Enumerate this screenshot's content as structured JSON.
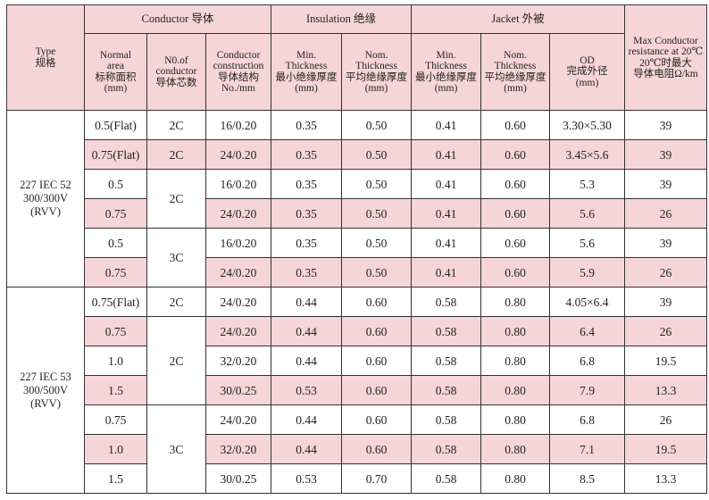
{
  "headers": {
    "type": [
      "Type",
      "规格"
    ],
    "group_conductor": "Conductor 导体",
    "group_insulation": "Insulation 绝缘",
    "group_jacket": "Jacket 外被",
    "area": [
      "Normal",
      "area",
      "标称面积",
      "(mm)"
    ],
    "cores": [
      "N0.of",
      "conductor",
      "导体芯数"
    ],
    "construction": [
      "Conductor",
      "construction",
      "导体结构",
      "No./mm"
    ],
    "ins_min": [
      "Min.",
      "Thickness",
      "最小绝缘厚度",
      "(mm)"
    ],
    "ins_nom": [
      "Nom.",
      "Thickness",
      "平均绝缘厚度",
      "(mm)"
    ],
    "jac_min": [
      "Min.",
      "Thickness",
      "最小绝缘厚度",
      "(mm)"
    ],
    "jac_nom": [
      "Nom.",
      "Thickness",
      "平均绝缘厚度",
      "(mm)"
    ],
    "od": [
      "OD",
      "完成外径",
      "(mm)"
    ],
    "resistance": [
      "Max Conductor",
      "resistance at 20℃",
      "20℃时最大",
      "导体电阻Ω/km"
    ]
  },
  "groups": [
    {
      "type": [
        "227 IEC 52",
        "300/300V",
        "(RVV)"
      ],
      "core_blocks": [
        {
          "label": "2C",
          "span": 1
        },
        {
          "label": "2C",
          "span": 1
        },
        {
          "label": "2C",
          "span": 2
        },
        {
          "label": "3C",
          "span": 2
        }
      ],
      "rows": [
        {
          "area": "0.5(Flat)",
          "construction": "16/0.20",
          "ins_min": "0.35",
          "ins_nom": "0.50",
          "jac_min": "0.41",
          "jac_nom": "0.60",
          "od": "3.30×5.30",
          "res": "39",
          "pink": false
        },
        {
          "area": "0.75(Flat)",
          "construction": "24/0.20",
          "ins_min": "0.35",
          "ins_nom": "0.50",
          "jac_min": "0.41",
          "jac_nom": "0.60",
          "od": "3.45×5.6",
          "res": "39",
          "pink": true
        },
        {
          "area": "0.5",
          "construction": "16/0.20",
          "ins_min": "0.35",
          "ins_nom": "0.50",
          "jac_min": "0.41",
          "jac_nom": "0.60",
          "od": "5.3",
          "res": "39",
          "pink": false
        },
        {
          "area": "0.75",
          "construction": "24/0.20",
          "ins_min": "0.35",
          "ins_nom": "0.50",
          "jac_min": "0.41",
          "jac_nom": "0.60",
          "od": "5.6",
          "res": "26",
          "pink": true
        },
        {
          "area": "0.5",
          "construction": "16/0.20",
          "ins_min": "0.35",
          "ins_nom": "0.50",
          "jac_min": "0.41",
          "jac_nom": "0.60",
          "od": "5.6",
          "res": "39",
          "pink": false
        },
        {
          "area": "0.75",
          "construction": "24/0.20",
          "ins_min": "0.35",
          "ins_nom": "0.50",
          "jac_min": "0.41",
          "jac_nom": "0.60",
          "od": "5.9",
          "res": "26",
          "pink": true
        }
      ]
    },
    {
      "type": [
        "227 IEC 53",
        "300/500V",
        "(RVV)"
      ],
      "core_blocks": [
        {
          "label": "2C",
          "span": 1
        },
        {
          "label": "2C",
          "span": 3
        },
        {
          "label": "3C",
          "span": 3
        }
      ],
      "rows": [
        {
          "area": "0.75(Flat)",
          "construction": "24/0.20",
          "ins_min": "0.44",
          "ins_nom": "0.60",
          "jac_min": "0.58",
          "jac_nom": "0.80",
          "od": "4.05×6.4",
          "res": "39",
          "pink": false
        },
        {
          "area": "0.75",
          "construction": "24/0.20",
          "ins_min": "0.44",
          "ins_nom": "0.60",
          "jac_min": "0.58",
          "jac_nom": "0.80",
          "od": "6.4",
          "res": "26",
          "pink": true
        },
        {
          "area": "1.0",
          "construction": "32/0.20",
          "ins_min": "0.44",
          "ins_nom": "0.60",
          "jac_min": "0.58",
          "jac_nom": "0.80",
          "od": "6.8",
          "res": "19.5",
          "pink": false
        },
        {
          "area": "1.5",
          "construction": "30/0.25",
          "ins_min": "0.53",
          "ins_nom": "0.60",
          "jac_min": "0.58",
          "jac_nom": "0.80",
          "od": "7.9",
          "res": "13.3",
          "pink": true
        },
        {
          "area": "0.75",
          "construction": "24/0.20",
          "ins_min": "0.44",
          "ins_nom": "0.60",
          "jac_min": "0.58",
          "jac_nom": "0.80",
          "od": "6.8",
          "res": "26",
          "pink": false
        },
        {
          "area": "1.0",
          "construction": "32/0.20",
          "ins_min": "0.44",
          "ins_nom": "0.60",
          "jac_min": "0.58",
          "jac_nom": "0.80",
          "od": "7.1",
          "res": "19.5",
          "pink": true
        },
        {
          "area": "1.5",
          "construction": "30/0.25",
          "ins_min": "0.53",
          "ins_nom": "0.70",
          "jac_min": "0.58",
          "jac_nom": "0.80",
          "od": "8.5",
          "res": "13.3",
          "pink": false
        }
      ]
    }
  ],
  "colors": {
    "header_bg": "#f6d5d8",
    "row_pink": "#f6d5d8",
    "border": "#333333"
  }
}
